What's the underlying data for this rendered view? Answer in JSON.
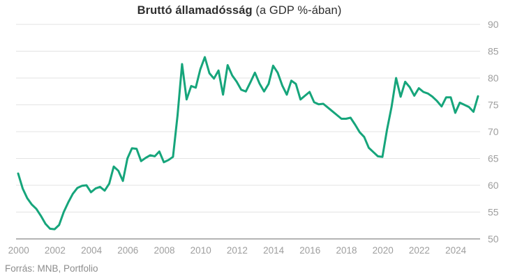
{
  "title": {
    "bold": "Bruttó államadósság",
    "rest": " (a GDP %-ában)"
  },
  "source": "Forrás: MNB, Portfolio",
  "chart_data": {
    "type": "line",
    "title": "Bruttó államadósság (a GDP %-ában)",
    "xlabel": "",
    "ylabel": "",
    "ylim": [
      50,
      90
    ],
    "grid": true,
    "y_axis_side": "right",
    "frequency": "quarterly",
    "start_period": "2000Q1",
    "end_period": "2025Q2",
    "x_ticks": [
      2000,
      2002,
      2004,
      2006,
      2008,
      2010,
      2012,
      2014,
      2016,
      2018,
      2020,
      2022,
      2024
    ],
    "y_ticks": [
      50,
      55,
      60,
      65,
      70,
      75,
      80,
      85,
      90
    ],
    "series": [
      {
        "name": "Bruttó államadósság (a GDP %-ában)",
        "values": [
          62.2,
          59.4,
          57.6,
          56.4,
          55.6,
          54.3,
          52.8,
          51.9,
          51.8,
          52.6,
          55.0,
          56.8,
          58.4,
          59.5,
          59.9,
          60.0,
          58.7,
          59.4,
          59.7,
          59.0,
          60.3,
          63.5,
          62.7,
          60.8,
          65.0,
          66.9,
          66.8,
          64.5,
          65.1,
          65.6,
          65.4,
          66.3,
          64.3,
          64.7,
          65.3,
          73.0,
          82.6,
          76.0,
          78.5,
          78.2,
          81.6,
          83.9,
          80.9,
          79.9,
          81.4,
          76.9,
          82.4,
          80.5,
          79.3,
          77.8,
          77.5,
          79.2,
          81.0,
          79.0,
          77.5,
          78.9,
          82.3,
          81.0,
          78.6,
          76.9,
          79.5,
          78.9,
          76.0,
          76.7,
          77.4,
          75.5,
          75.1,
          75.2,
          74.5,
          73.8,
          73.1,
          72.4,
          72.4,
          72.6,
          71.3,
          69.9,
          69.0,
          67.0,
          66.2,
          65.4,
          65.3,
          70.3,
          74.6,
          80.0,
          76.5,
          79.3,
          78.3,
          76.7,
          78.1,
          77.4,
          77.1,
          76.5,
          75.7,
          74.7,
          76.4,
          76.4,
          73.5,
          75.4,
          75.0,
          74.6,
          73.7,
          76.6
        ]
      }
    ],
    "colors": {
      "line": "#16a57b",
      "grid": "#e3e3e3",
      "axis": "#9b9b9b",
      "tick_label": "#9e9e9e",
      "title": "#2e2e2e",
      "source": "#8d8d8d",
      "background": "#ffffff"
    }
  }
}
